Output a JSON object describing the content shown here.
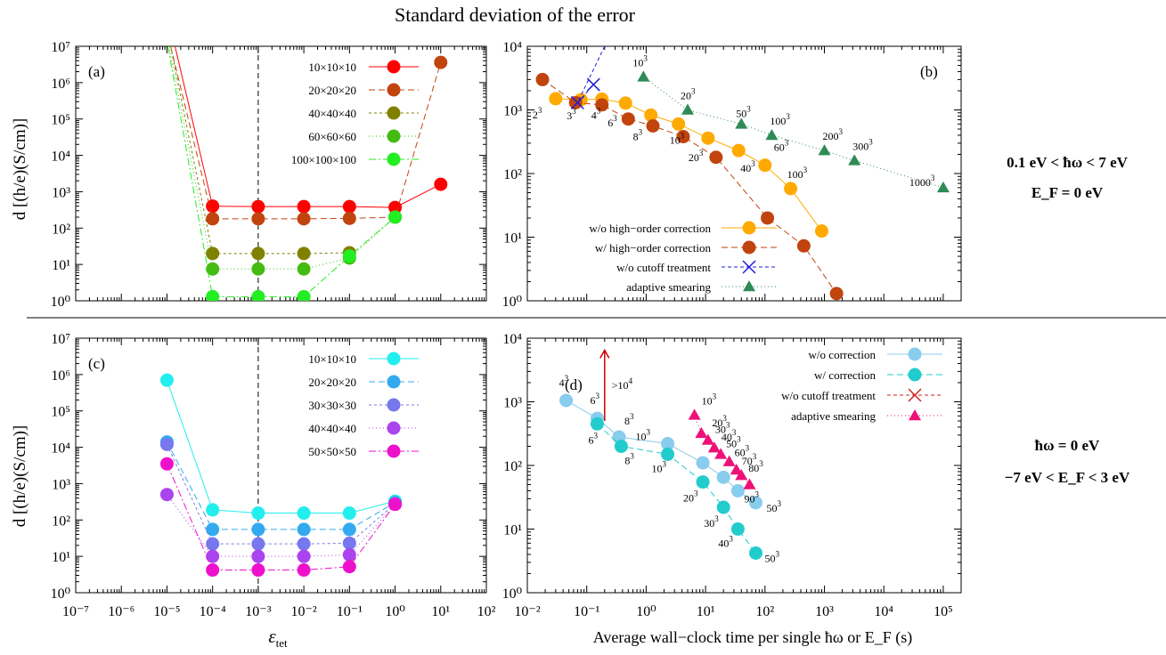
{
  "title": "Standard deviation of the error",
  "side_notes": {
    "top_line1": "0.1 eV < ħω < 7 eV",
    "top_line2": "E_F = 0 eV",
    "bottom_line1": "ħω = 0 eV",
    "bottom_line2": "−7 eV < E_F < 3 eV"
  },
  "ylabel": "d [(h/e)(S/cm)]",
  "xlabel_left": "ε_tet",
  "xlabel_right": "Average wall−clock time per single ħω or E_F (s)",
  "arrow_label": ">10^4",
  "chart_data": [
    {
      "panel": "(a)",
      "type": "line",
      "xscale": "log",
      "yscale": "log",
      "xlim": [
        1e-07,
        100
      ],
      "ylim": [
        1,
        10000000.0
      ],
      "vline_x": 0.001,
      "legend_position": "top-right",
      "series": [
        {
          "name": "10×10×10",
          "color": "#ff0000",
          "marker": "circle",
          "dash": "",
          "x": [
            0.0001,
            0.001,
            0.01,
            0.1,
            1,
            10
          ],
          "y": [
            400,
            390,
            390,
            390,
            370,
            1600
          ],
          "line_ext": [
            [
              1.5e-05,
              10000000.0
            ]
          ]
        },
        {
          "name": "20×20×20",
          "color": "#c1440e",
          "marker": "circle",
          "dash": "7,4",
          "x": [
            0.0001,
            0.001,
            0.01,
            0.1,
            1,
            10
          ],
          "y": [
            180,
            180,
            180,
            185,
            200,
            3600000
          ],
          "line_ext": [
            [
              1.2e-05,
              10000000.0
            ]
          ]
        },
        {
          "name": "40×40×40",
          "color": "#808000",
          "marker": "circle",
          "dash": "3,3",
          "x": [
            0.0001,
            0.001,
            0.01,
            0.1
          ],
          "y": [
            20,
            20,
            20,
            21
          ],
          "line_ext": [
            [
              1.2e-05,
              10000000.0
            ]
          ]
        },
        {
          "name": "60×60×60",
          "color": "#44bb11",
          "marker": "circle",
          "dash": "1,3",
          "x": [
            0.0001,
            0.001,
            0.01,
            0.1,
            1
          ],
          "y": [
            7.5,
            7.5,
            7.5,
            15,
            200
          ],
          "line_ext": [
            [
              1.1e-05,
              10000000.0
            ]
          ]
        },
        {
          "name": "100×100×100",
          "color": "#22ee22",
          "marker": "circle",
          "dash": "8,3,2,3",
          "x": [
            0.0001,
            0.001,
            0.01,
            0.1,
            1
          ],
          "y": [
            1.3,
            1.3,
            1.3,
            17,
            200
          ],
          "line_ext": [
            [
              1.05e-05,
              10000000.0
            ]
          ]
        }
      ]
    },
    {
      "panel": "(b)",
      "type": "line",
      "xscale": "log",
      "yscale": "log",
      "xlim": [
        0.01,
        200000
      ],
      "ylim": [
        1,
        10000
      ],
      "legend_position": "bottom-left",
      "series": [
        {
          "name": "w/o high−order correction",
          "color": "#ffaa00",
          "marker": "circle",
          "dash": "",
          "x": [
            0.03,
            0.08,
            0.18,
            0.45,
            1.2,
            3.5,
            11,
            36,
            100,
            270,
            900
          ],
          "y": [
            1500,
            1450,
            1480,
            1280,
            830,
            600,
            360,
            230,
            135,
            58,
            12.5
          ],
          "labels": [
            "2^3",
            "3^3",
            "4^3",
            "6^3",
            "8^3",
            "10^3",
            "20^3",
            "40^3",
            "60^3",
            "100^3",
            ""
          ]
        },
        {
          "name": "w/ high−order correction",
          "color": "#c1440e",
          "marker": "circle",
          "dash": "7,4",
          "x": [
            0.018,
            0.065,
            0.18,
            0.5,
            1.3,
            4.2,
            15,
            110,
            450,
            1600
          ],
          "y": [
            3000,
            1300,
            1200,
            720,
            560,
            380,
            180,
            20,
            7.3,
            1.3
          ],
          "labels": [
            "",
            "",
            "",
            "",
            "",
            "",
            "",
            "",
            "",
            ""
          ]
        },
        {
          "name": "w/o cutoff treatment",
          "color": "#1c1cdd",
          "marker": "cross",
          "dash": "4,3",
          "x": [
            0.07,
            0.13
          ],
          "y": [
            1300,
            2500
          ],
          "line_ext": [
            [
              0.2,
              10000
            ]
          ]
        },
        {
          "name": "adaptive smearing",
          "color": "#2e8b57",
          "marker": "triangle",
          "dash": "1,3",
          "x": [
            0.9,
            5.0,
            40,
            130,
            1000,
            3200,
            100000
          ],
          "y": [
            3300,
            1000,
            600,
            400,
            230,
            160,
            60
          ],
          "labels": [
            "10^3",
            "20^3",
            "50^3",
            "100^3",
            "200^3",
            "300^3",
            "1000^3"
          ]
        }
      ]
    },
    {
      "panel": "(c)",
      "type": "line",
      "xscale": "log",
      "yscale": "log",
      "xlim": [
        1e-07,
        100
      ],
      "ylim": [
        1,
        10000000.0
      ],
      "vline_x": 0.001,
      "legend_position": "top-right",
      "series": [
        {
          "name": "10×10×10",
          "color": "#22eeee",
          "marker": "circle",
          "dash": "",
          "x": [
            1e-05,
            0.0001,
            0.001,
            0.01,
            0.1,
            1
          ],
          "y": [
            700000,
            190,
            155,
            155,
            155,
            330
          ]
        },
        {
          "name": "20×20×20",
          "color": "#33aaee",
          "marker": "circle",
          "dash": "7,4",
          "x": [
            1e-05,
            0.0001,
            0.001,
            0.01,
            0.1,
            1
          ],
          "y": [
            14000,
            55,
            55,
            55,
            55,
            300
          ]
        },
        {
          "name": "30×30×30",
          "color": "#7777ee",
          "marker": "circle",
          "dash": "3,3",
          "x": [
            1e-05,
            0.0001,
            0.001,
            0.01,
            0.1,
            1
          ],
          "y": [
            12000,
            22,
            22,
            22,
            23,
            280
          ]
        },
        {
          "name": "40×40×40",
          "color": "#aa44ee",
          "marker": "circle",
          "dash": "1,3",
          "x": [
            1e-05,
            0.0001,
            0.001,
            0.01,
            0.1,
            1
          ],
          "y": [
            500,
            10,
            10,
            10,
            11,
            270
          ]
        },
        {
          "name": "50×50×50",
          "color": "#ee11cc",
          "marker": "circle",
          "dash": "8,3,2,3",
          "x": [
            1e-05,
            0.0001,
            0.001,
            0.01,
            0.1,
            1
          ],
          "y": [
            3500,
            4.2,
            4.2,
            4.2,
            5.2,
            270
          ]
        }
      ]
    },
    {
      "panel": "(d)",
      "type": "line",
      "xscale": "log",
      "yscale": "log",
      "xlim": [
        0.01,
        200000
      ],
      "ylim": [
        1,
        10000
      ],
      "legend_position": "top-right",
      "series": [
        {
          "name": "w/o correction",
          "color": "#88ccee",
          "marker": "circle",
          "dash": "",
          "x": [
            0.045,
            0.15,
            0.35,
            2.3,
            9,
            20,
            35,
            70
          ],
          "y": [
            1050,
            550,
            280,
            220,
            110,
            65,
            40,
            26
          ],
          "labels": [
            "4^3",
            "6^3",
            "8^3",
            "10^3",
            "",
            "",
            "",
            "50^3"
          ]
        },
        {
          "name": "w/ correction",
          "color": "#22cccc",
          "marker": "circle",
          "dash": "7,4",
          "x": [
            0.15,
            0.38,
            2.3,
            9,
            20,
            35,
            70
          ],
          "y": [
            450,
            200,
            150,
            55,
            22,
            10,
            4.2
          ],
          "labels": [
            "6^3",
            "8^3",
            "10^3",
            "20^3",
            "30^3",
            "40^3",
            "50^3"
          ]
        },
        {
          "name": "w/o cutoff treatment",
          "color": "#cc2222",
          "marker": "cross",
          "dash": "4,3"
        },
        {
          "name": "adaptive smearing",
          "color": "#ee1177",
          "marker": "triangle",
          "dash": "1,3",
          "x": [
            6.5,
            8.5,
            11,
            14,
            18,
            25,
            33,
            40,
            55
          ],
          "y": [
            620,
            320,
            250,
            190,
            150,
            115,
            85,
            70,
            50
          ],
          "labels": [
            "10^3",
            "20^3",
            "30^3",
            "40^3",
            "50^3",
            "60^3",
            "70^3",
            "80^3",
            "90^3"
          ]
        }
      ]
    }
  ]
}
